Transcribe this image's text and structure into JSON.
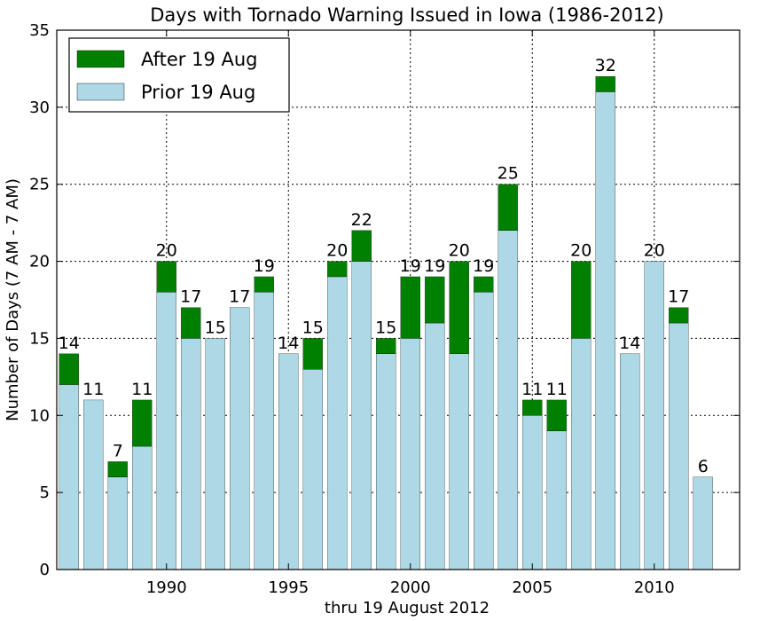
{
  "chart_data": {
    "type": "bar",
    "stacked": true,
    "title": "Days with Tornado Warning Issued in Iowa (1986-2012)",
    "xlabel": "thru 19 August 2012",
    "ylabel": "Number of Days (7 AM - 7 AM)",
    "xlim": [
      1985.5,
      2013.5
    ],
    "ylim": [
      0,
      35
    ],
    "xticks": [
      1990,
      1995,
      2000,
      2005,
      2010
    ],
    "yticks": [
      0,
      5,
      10,
      15,
      20,
      25,
      30,
      35
    ],
    "grid": true,
    "legend_position": "top-left",
    "years": [
      1986,
      1987,
      1988,
      1989,
      1990,
      1991,
      1992,
      1993,
      1994,
      1995,
      1996,
      1997,
      1998,
      1999,
      2000,
      2001,
      2002,
      2003,
      2004,
      2005,
      2006,
      2007,
      2008,
      2009,
      2010,
      2011,
      2012
    ],
    "series": [
      {
        "name": "Prior 19 Aug",
        "color": "#add8e6",
        "values": [
          12,
          11,
          6,
          8,
          18,
          15,
          15,
          17,
          18,
          14,
          13,
          19,
          20,
          14,
          15,
          16,
          14,
          18,
          22,
          10,
          9,
          15,
          31,
          14,
          20,
          16,
          6
        ]
      },
      {
        "name": "After 19 Aug",
        "color": "#008000",
        "values": [
          2,
          0,
          1,
          3,
          2,
          2,
          0,
          0,
          1,
          0,
          2,
          1,
          2,
          1,
          4,
          3,
          6,
          1,
          3,
          1,
          2,
          5,
          1,
          0,
          0,
          1,
          0
        ]
      }
    ],
    "totals": [
      14,
      11,
      7,
      11,
      20,
      17,
      15,
      17,
      19,
      14,
      15,
      20,
      22,
      15,
      19,
      19,
      20,
      19,
      25,
      11,
      11,
      20,
      32,
      14,
      20,
      17,
      6
    ],
    "legend": [
      {
        "label": "After 19 Aug",
        "color": "#008000"
      },
      {
        "label": "Prior 19 Aug",
        "color": "#add8e6"
      }
    ]
  }
}
